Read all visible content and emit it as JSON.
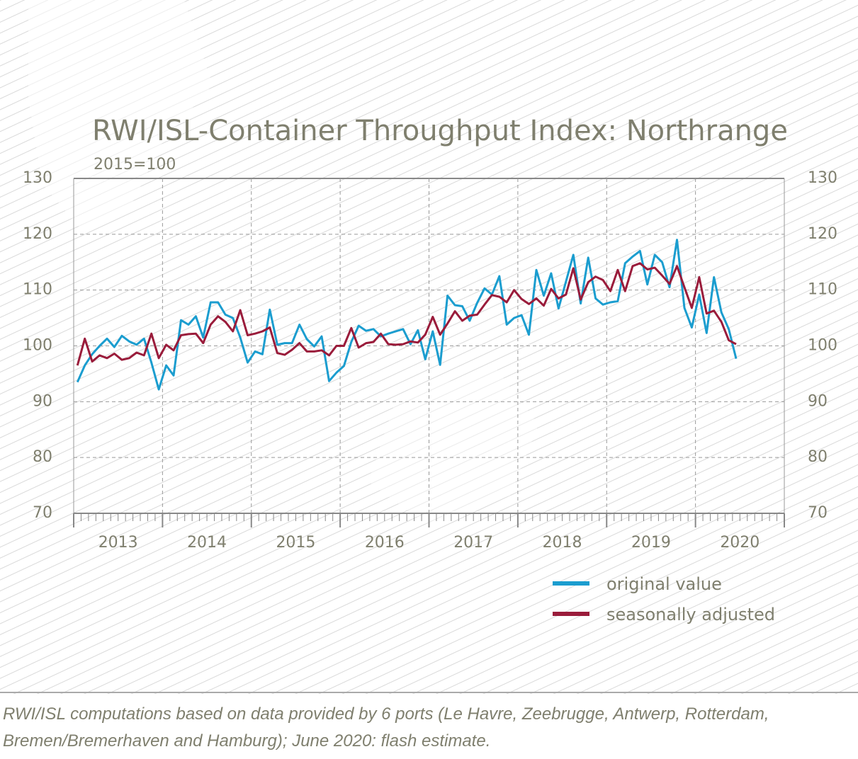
{
  "chart_data": {
    "type": "line",
    "title": "RWI/ISL-Container Throughput Index: Northrange",
    "subtitle": "2015=100",
    "x": [
      2013.042,
      2013.125,
      2013.208,
      2013.292,
      2013.375,
      2013.458,
      2013.542,
      2013.625,
      2013.708,
      2013.792,
      2013.875,
      2013.958,
      2014.042,
      2014.125,
      2014.208,
      2014.292,
      2014.375,
      2014.458,
      2014.542,
      2014.625,
      2014.708,
      2014.792,
      2014.875,
      2014.958,
      2015.042,
      2015.125,
      2015.208,
      2015.292,
      2015.375,
      2015.458,
      2015.542,
      2015.625,
      2015.708,
      2015.792,
      2015.875,
      2015.958,
      2016.042,
      2016.125,
      2016.208,
      2016.292,
      2016.375,
      2016.458,
      2016.542,
      2016.625,
      2016.708,
      2016.792,
      2016.875,
      2016.958,
      2017.042,
      2017.125,
      2017.208,
      2017.292,
      2017.375,
      2017.458,
      2017.542,
      2017.625,
      2017.708,
      2017.792,
      2017.875,
      2017.958,
      2018.042,
      2018.125,
      2018.208,
      2018.292,
      2018.375,
      2018.458,
      2018.542,
      2018.625,
      2018.708,
      2018.792,
      2018.875,
      2018.958,
      2019.042,
      2019.125,
      2019.208,
      2019.292,
      2019.375,
      2019.458,
      2019.542,
      2019.625,
      2019.708,
      2019.792,
      2019.875,
      2019.958,
      2020.042,
      2020.125,
      2020.208,
      2020.292,
      2020.375,
      2020.458
    ],
    "series": [
      {
        "name": "original value",
        "color": "#1b9dcf",
        "values": [
          93.5,
          96.5,
          98.5,
          100,
          101.3,
          99.8,
          101.8,
          100.8,
          100.2,
          101.3,
          97,
          92.2,
          96.5,
          94.7,
          104.6,
          103.8,
          105.3,
          101.5,
          107.8,
          107.8,
          105.6,
          105,
          101.5,
          97,
          99,
          98.5,
          106.5,
          100.2,
          100.5,
          100.5,
          103.8,
          101.2,
          99.9,
          101.7,
          93.7,
          95.2,
          96.4,
          100.7,
          103.6,
          102.7,
          103,
          101.7,
          102.2,
          102.6,
          103,
          100.3,
          102.8,
          97.6,
          102.6,
          96.6,
          109,
          107.3,
          107.1,
          104.5,
          107.7,
          110.3,
          109.2,
          112.5,
          103.8,
          105,
          105.5,
          102,
          113.6,
          109,
          113,
          106.7,
          111.5,
          116.3,
          107.6,
          115.8,
          108.5,
          107.4,
          107.8,
          108,
          114.8,
          116,
          117,
          111,
          116.3,
          115,
          110.5,
          119,
          106.8,
          103.3,
          109.2,
          102.3,
          112.3,
          106,
          103,
          97.7
        ]
      },
      {
        "name": "seasonally adjusted",
        "color": "#9a1c3b",
        "values": [
          96.5,
          101.3,
          97.2,
          98.3,
          97.8,
          98.6,
          97.5,
          97.8,
          98.8,
          98.3,
          102.2,
          97.8,
          100.2,
          99.2,
          101.9,
          102.1,
          102.2,
          100.5,
          103.8,
          105.3,
          104.3,
          102.6,
          106.4,
          101.9,
          102.2,
          102.6,
          103.3,
          98.7,
          98.4,
          99.3,
          100.5,
          99,
          99,
          99.2,
          98.3,
          100,
          100,
          103.2,
          99.7,
          100.5,
          100.7,
          102.2,
          100.3,
          100.2,
          100.3,
          100.8,
          100.6,
          102,
          105.2,
          102,
          104,
          106.2,
          104.5,
          105.4,
          105.6,
          107.4,
          109.1,
          108.8,
          107.8,
          110,
          108.4,
          107.5,
          108.5,
          107.2,
          110.2,
          108.5,
          109.2,
          113.9,
          108.3,
          111.4,
          112.4,
          111.8,
          109.8,
          113.6,
          109.8,
          114.3,
          114.8,
          113.7,
          114,
          112.6,
          111.1,
          114.3,
          110.5,
          106.8,
          112.3,
          105.8,
          106.3,
          104.3,
          101,
          100.3
        ]
      }
    ],
    "xlim": [
      2013,
      2021
    ],
    "xgrid": [
      2013,
      2014,
      2015,
      2016,
      2017,
      2018,
      2019,
      2020,
      2021
    ],
    "xticks": [
      {
        "value": 2013.5,
        "label": "2013"
      },
      {
        "value": 2014.5,
        "label": "2014"
      },
      {
        "value": 2015.5,
        "label": "2015"
      },
      {
        "value": 2016.5,
        "label": "2016"
      },
      {
        "value": 2017.5,
        "label": "2017"
      },
      {
        "value": 2018.5,
        "label": "2018"
      },
      {
        "value": 2019.5,
        "label": "2019"
      },
      {
        "value": 2020.5,
        "label": "2020"
      }
    ],
    "ylim": [
      70,
      130
    ],
    "yticks": [
      70,
      80,
      90,
      100,
      110,
      120,
      130
    ],
    "grid": true,
    "legend": "lower-right",
    "note": "RWI/ISL computations based on data provided by 6 ports (Le Havre, Zeebrugge, Antwerp, Rotterdam, Bremen/Bremerhaven and Hamburg); June 2020: flash estimate."
  }
}
